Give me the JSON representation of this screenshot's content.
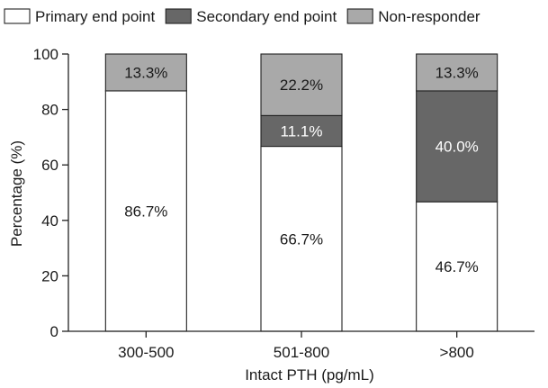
{
  "chart_data": {
    "type": "bar",
    "stacked": true,
    "title": "",
    "xlabel": "Intact PTH (pg/mL)",
    "ylabel": "Percentage (%)",
    "ylim": [
      0,
      100
    ],
    "yticks": [
      0,
      20,
      40,
      60,
      80,
      100
    ],
    "categories": [
      "300-500",
      "501-800",
      ">800"
    ],
    "legend_position": "top",
    "grid": false,
    "series": [
      {
        "name": "Primary end point",
        "color": "#ffffff",
        "values": [
          86.7,
          66.7,
          46.7
        ],
        "labels": [
          "86.7%",
          "66.7%",
          "46.7%"
        ]
      },
      {
        "name": "Secondary end point",
        "color": "#676767",
        "values": [
          0,
          11.1,
          40.0
        ],
        "labels": [
          "",
          "11.1%",
          "40.0%"
        ]
      },
      {
        "name": "Non-responder",
        "color": "#a9a9a9",
        "values": [
          13.3,
          22.2,
          13.3
        ],
        "labels": [
          "13.3%",
          "22.2%",
          "13.3%"
        ]
      }
    ]
  }
}
